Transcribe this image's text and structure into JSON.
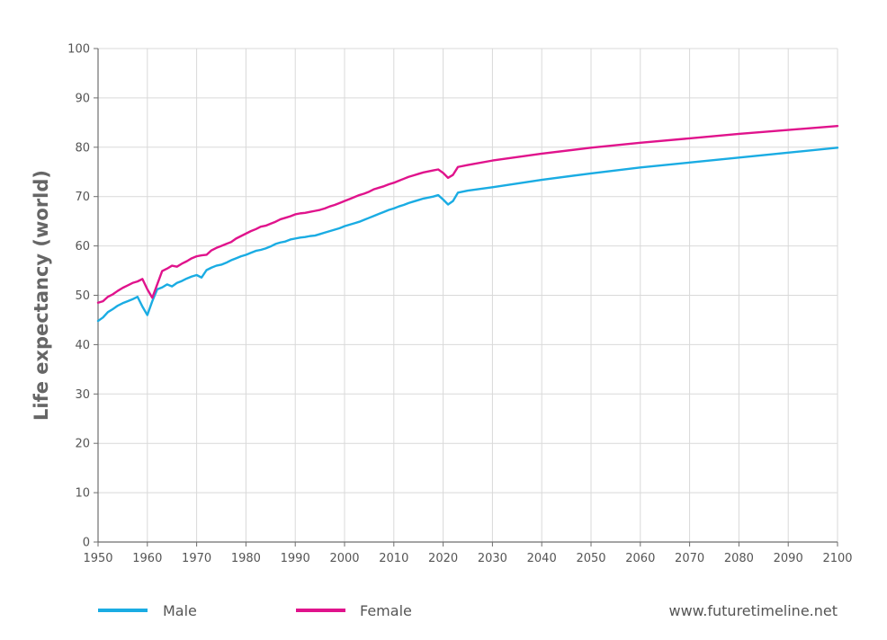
{
  "chart_data": {
    "type": "line",
    "title": "",
    "ylabel": "Life expectancy (world)",
    "xlabel": "",
    "xlim": [
      1950,
      2100
    ],
    "ylim": [
      0,
      100
    ],
    "x_ticks": [
      1950,
      1960,
      1970,
      1980,
      1990,
      2000,
      2010,
      2020,
      2030,
      2040,
      2050,
      2060,
      2070,
      2080,
      2090,
      2100
    ],
    "y_ticks": [
      0,
      10,
      20,
      30,
      40,
      50,
      60,
      70,
      80,
      90,
      100
    ],
    "grid": true,
    "legend_position": "bottom-left",
    "series": [
      {
        "name": "Male",
        "color": "#1aace3",
        "points": [
          [
            1950,
            44.8
          ],
          [
            1951,
            45.5
          ],
          [
            1952,
            46.6
          ],
          [
            1953,
            47.2
          ],
          [
            1954,
            47.9
          ],
          [
            1955,
            48.4
          ],
          [
            1956,
            48.8
          ],
          [
            1957,
            49.2
          ],
          [
            1958,
            49.7
          ],
          [
            1959,
            47.7
          ],
          [
            1960,
            46.0
          ],
          [
            1961,
            48.8
          ],
          [
            1962,
            51.2
          ],
          [
            1963,
            51.6
          ],
          [
            1964,
            52.2
          ],
          [
            1965,
            51.8
          ],
          [
            1966,
            52.5
          ],
          [
            1967,
            52.9
          ],
          [
            1968,
            53.4
          ],
          [
            1969,
            53.8
          ],
          [
            1970,
            54.1
          ],
          [
            1971,
            53.6
          ],
          [
            1972,
            55.1
          ],
          [
            1973,
            55.6
          ],
          [
            1974,
            56.0
          ],
          [
            1975,
            56.2
          ],
          [
            1976,
            56.6
          ],
          [
            1977,
            57.1
          ],
          [
            1978,
            57.5
          ],
          [
            1979,
            57.9
          ],
          [
            1980,
            58.2
          ],
          [
            1981,
            58.6
          ],
          [
            1982,
            59.0
          ],
          [
            1983,
            59.2
          ],
          [
            1984,
            59.5
          ],
          [
            1985,
            59.9
          ],
          [
            1986,
            60.4
          ],
          [
            1987,
            60.7
          ],
          [
            1988,
            60.9
          ],
          [
            1989,
            61.3
          ],
          [
            1990,
            61.5
          ],
          [
            1991,
            61.7
          ],
          [
            1992,
            61.8
          ],
          [
            1993,
            62.0
          ],
          [
            1994,
            62.1
          ],
          [
            1995,
            62.4
          ],
          [
            1996,
            62.7
          ],
          [
            1997,
            63.0
          ],
          [
            1998,
            63.3
          ],
          [
            1999,
            63.6
          ],
          [
            2000,
            64.0
          ],
          [
            2001,
            64.3
          ],
          [
            2002,
            64.6
          ],
          [
            2003,
            64.9
          ],
          [
            2004,
            65.3
          ],
          [
            2005,
            65.7
          ],
          [
            2006,
            66.1
          ],
          [
            2007,
            66.5
          ],
          [
            2008,
            66.9
          ],
          [
            2009,
            67.3
          ],
          [
            2010,
            67.6
          ],
          [
            2011,
            68.0
          ],
          [
            2012,
            68.3
          ],
          [
            2013,
            68.7
          ],
          [
            2014,
            69.0
          ],
          [
            2015,
            69.3
          ],
          [
            2016,
            69.6
          ],
          [
            2017,
            69.8
          ],
          [
            2018,
            70.0
          ],
          [
            2019,
            70.3
          ],
          [
            2020,
            69.4
          ],
          [
            2021,
            68.4
          ],
          [
            2022,
            69.1
          ],
          [
            2023,
            70.8
          ],
          [
            2025,
            71.2
          ],
          [
            2030,
            71.9
          ],
          [
            2040,
            73.4
          ],
          [
            2050,
            74.7
          ],
          [
            2060,
            75.9
          ],
          [
            2070,
            76.9
          ],
          [
            2080,
            77.9
          ],
          [
            2090,
            78.9
          ],
          [
            2100,
            79.9
          ]
        ]
      },
      {
        "name": "Female",
        "color": "#e0138c",
        "points": [
          [
            1950,
            48.5
          ],
          [
            1951,
            48.8
          ],
          [
            1952,
            49.7
          ],
          [
            1953,
            50.2
          ],
          [
            1954,
            50.9
          ],
          [
            1955,
            51.5
          ],
          [
            1956,
            52.0
          ],
          [
            1957,
            52.5
          ],
          [
            1958,
            52.8
          ],
          [
            1959,
            53.3
          ],
          [
            1960,
            51.2
          ],
          [
            1961,
            49.5
          ],
          [
            1962,
            52.2
          ],
          [
            1963,
            54.9
          ],
          [
            1964,
            55.4
          ],
          [
            1965,
            56.0
          ],
          [
            1966,
            55.8
          ],
          [
            1967,
            56.4
          ],
          [
            1968,
            56.9
          ],
          [
            1969,
            57.5
          ],
          [
            1970,
            57.9
          ],
          [
            1971,
            58.1
          ],
          [
            1972,
            58.2
          ],
          [
            1973,
            59.1
          ],
          [
            1974,
            59.6
          ],
          [
            1975,
            60.0
          ],
          [
            1976,
            60.4
          ],
          [
            1977,
            60.8
          ],
          [
            1978,
            61.5
          ],
          [
            1979,
            62.0
          ],
          [
            1980,
            62.5
          ],
          [
            1981,
            63.0
          ],
          [
            1982,
            63.4
          ],
          [
            1983,
            63.9
          ],
          [
            1984,
            64.1
          ],
          [
            1985,
            64.5
          ],
          [
            1986,
            64.9
          ],
          [
            1987,
            65.4
          ],
          [
            1988,
            65.7
          ],
          [
            1989,
            66.0
          ],
          [
            1990,
            66.4
          ],
          [
            1991,
            66.6
          ],
          [
            1992,
            66.7
          ],
          [
            1993,
            66.9
          ],
          [
            1994,
            67.1
          ],
          [
            1995,
            67.3
          ],
          [
            1996,
            67.6
          ],
          [
            1997,
            68.0
          ],
          [
            1998,
            68.3
          ],
          [
            1999,
            68.7
          ],
          [
            2000,
            69.1
          ],
          [
            2001,
            69.5
          ],
          [
            2002,
            69.9
          ],
          [
            2003,
            70.3
          ],
          [
            2004,
            70.6
          ],
          [
            2005,
            71.0
          ],
          [
            2006,
            71.5
          ],
          [
            2007,
            71.8
          ],
          [
            2008,
            72.1
          ],
          [
            2009,
            72.5
          ],
          [
            2010,
            72.8
          ],
          [
            2011,
            73.2
          ],
          [
            2012,
            73.6
          ],
          [
            2013,
            74.0
          ],
          [
            2014,
            74.3
          ],
          [
            2015,
            74.6
          ],
          [
            2016,
            74.9
          ],
          [
            2017,
            75.1
          ],
          [
            2018,
            75.3
          ],
          [
            2019,
            75.5
          ],
          [
            2020,
            74.8
          ],
          [
            2021,
            73.8
          ],
          [
            2022,
            74.4
          ],
          [
            2023,
            76.0
          ],
          [
            2025,
            76.4
          ],
          [
            2030,
            77.3
          ],
          [
            2040,
            78.7
          ],
          [
            2050,
            79.9
          ],
          [
            2060,
            80.9
          ],
          [
            2070,
            81.8
          ],
          [
            2080,
            82.7
          ],
          [
            2090,
            83.5
          ],
          [
            2100,
            84.3
          ]
        ]
      }
    ]
  },
  "legend": {
    "male_label": "Male",
    "female_label": "Female"
  },
  "credit": "www.futuretimeline.net"
}
